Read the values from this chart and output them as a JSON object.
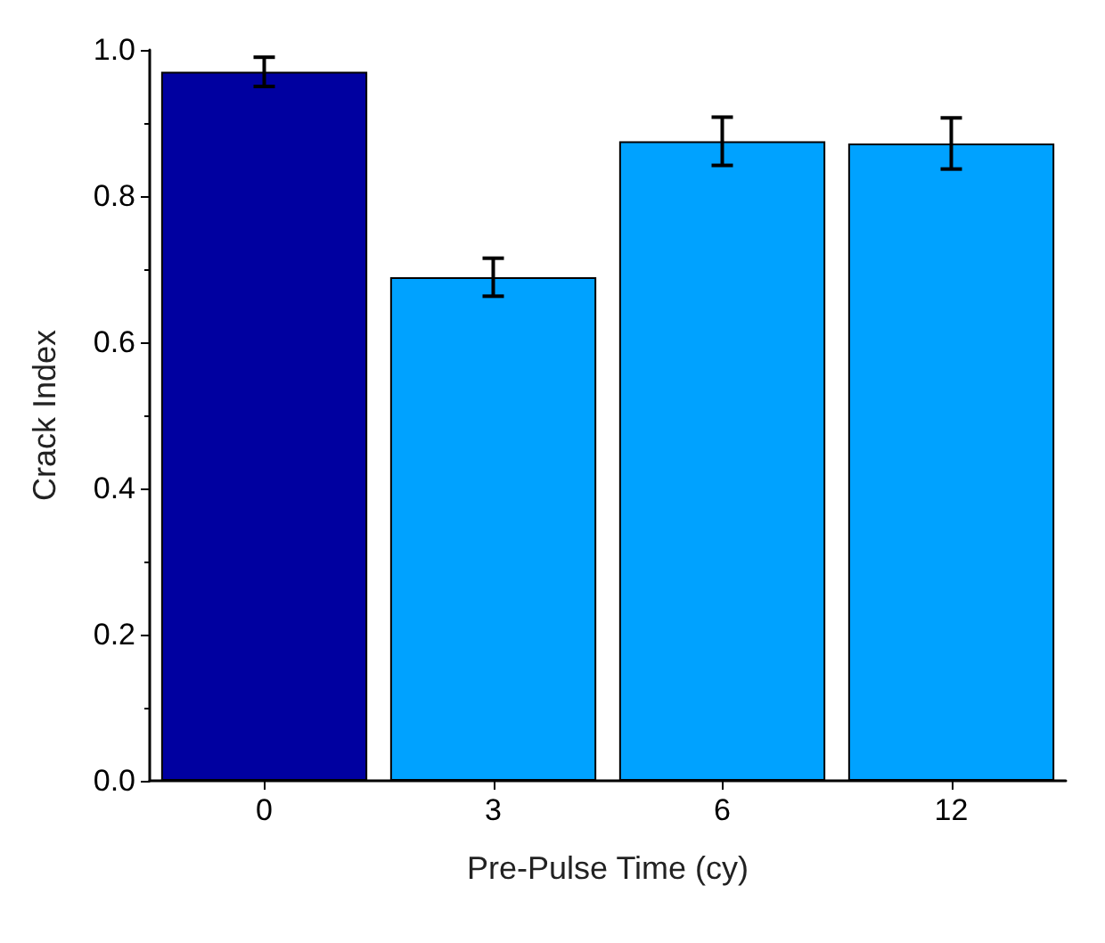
{
  "chart_data": {
    "type": "bar",
    "xlabel": "Pre-Pulse Time (cy)",
    "ylabel": "Crack Index",
    "categories": [
      "0",
      "3",
      "6",
      "12"
    ],
    "values": [
      0.97,
      0.689,
      0.875,
      0.872
    ],
    "errors": [
      0.02,
      0.026,
      0.033,
      0.035
    ],
    "colors": [
      "#0000a0",
      "#00a2ff",
      "#00a2ff",
      "#00a2ff"
    ],
    "ylim": [
      0,
      1
    ],
    "yticks": [
      {
        "value": 0,
        "label": "0.0"
      },
      {
        "value": 0.2,
        "label": "0.2"
      },
      {
        "value": 0.4,
        "label": "0.4"
      },
      {
        "value": 0.6,
        "label": "0.6"
      },
      {
        "value": 0.8,
        "label": "0.8"
      },
      {
        "value": 1,
        "label": "1.0"
      }
    ],
    "grid": false
  }
}
